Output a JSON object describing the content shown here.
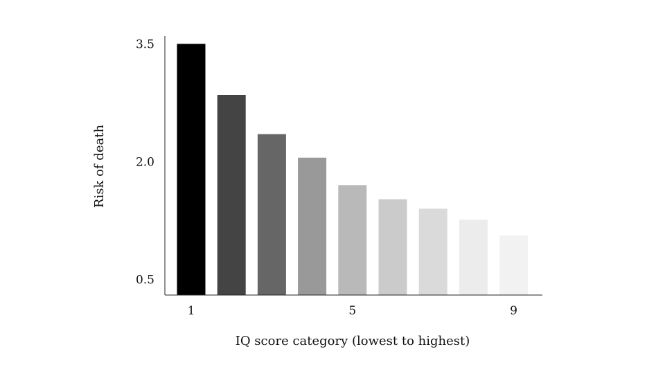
{
  "chart_data": {
    "type": "bar",
    "categories": [
      "1",
      "2",
      "3",
      "4",
      "5",
      "6",
      "7",
      "8",
      "9"
    ],
    "values": [
      3.5,
      2.85,
      2.35,
      2.05,
      1.7,
      1.52,
      1.4,
      1.26,
      1.06
    ],
    "xlabel": "IQ score category (lowest to highest)",
    "ylabel": "Risk of death",
    "x_tick_labels": [
      "1",
      "",
      "",
      "",
      "5",
      "",
      "",
      "",
      "9"
    ],
    "y_ticks": [
      0.5,
      2.0,
      3.5
    ],
    "y_tick_labels": [
      "0.5",
      "2.0",
      "3.5"
    ],
    "ylim": [
      0.3,
      3.6
    ],
    "grid": false,
    "legend": "none",
    "bar_colors": [
      "#000000",
      "#444444",
      "#666666",
      "#999999",
      "#b9b9b9",
      "#cbcbcb",
      "#dadada",
      "#ececec",
      "#f2f2f2"
    ]
  }
}
